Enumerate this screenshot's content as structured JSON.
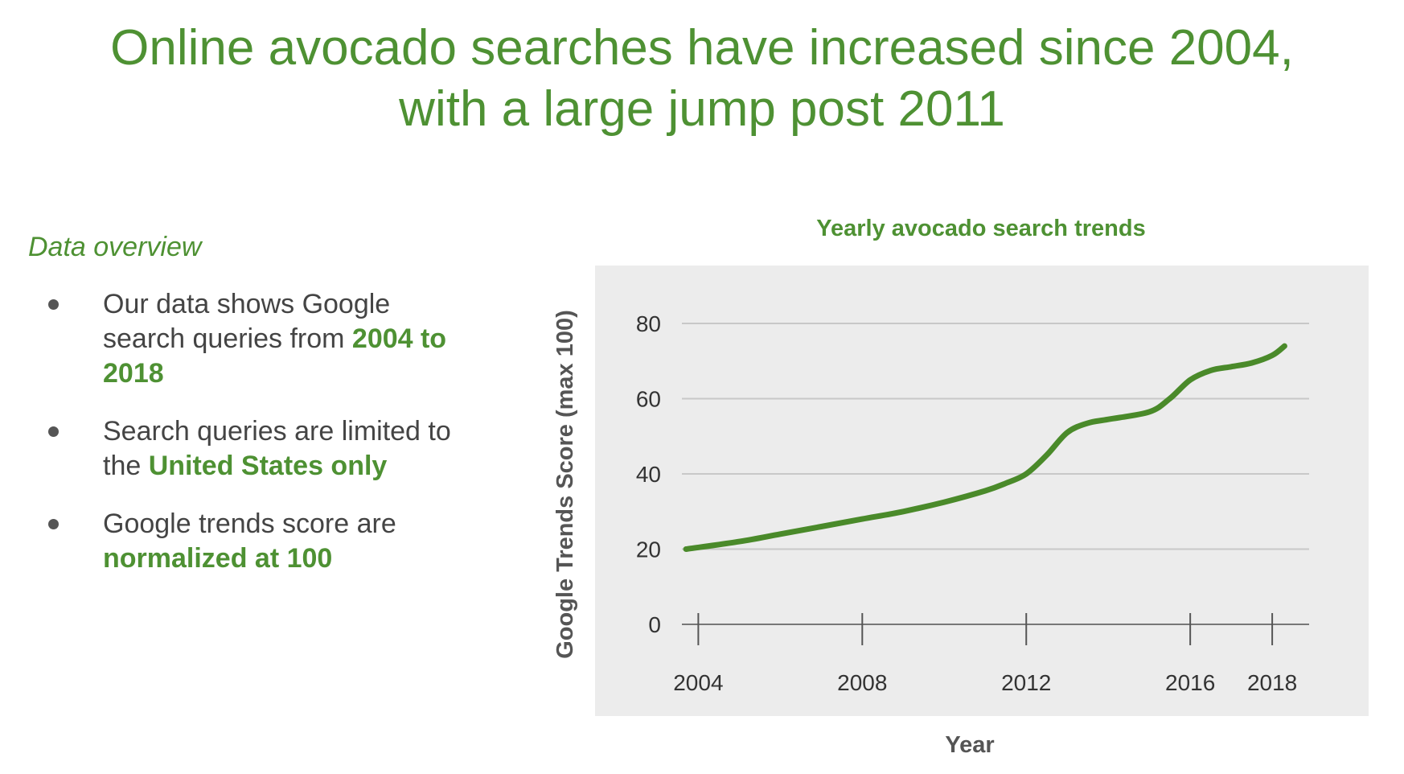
{
  "slide": {
    "title_line1": "Online avocado searches have increased since 2004,",
    "title_line2": "with a large jump post 2011"
  },
  "overview": {
    "heading": "Data overview",
    "bullets": [
      {
        "text": "Our data shows Google search queries from ",
        "highlight": "2004 to 2018",
        "after": ""
      },
      {
        "text": "Search queries are limited to the ",
        "highlight": "United States only",
        "after": ""
      },
      {
        "text": "Google trends score are ",
        "highlight": "normalized at 100",
        "after": ""
      }
    ]
  },
  "colors": {
    "accent": "#4e9133",
    "line": "#4a8a2a",
    "plot_background": "#ececec",
    "grid": "#c8c8c8",
    "text": "#444444"
  },
  "chart_data": {
    "type": "line",
    "title": "Yearly avocado search trends",
    "xlabel": "Year",
    "ylabel": "Google Trends Score (max 100)",
    "xlim": [
      2003.6,
      2018.9
    ],
    "ylim": [
      0,
      80
    ],
    "x_ticks": [
      2004,
      2008,
      2012,
      2016,
      2018
    ],
    "y_ticks": [
      0,
      20,
      40,
      60,
      80
    ],
    "grid": true,
    "series": [
      {
        "x": [
          2003.7,
          2005,
          2006,
          2007,
          2008,
          2009,
          2010,
          2011,
          2011.5,
          2012,
          2012.5,
          2013,
          2013.5,
          2014,
          2015,
          2015.5,
          2016,
          2016.5,
          2017,
          2017.5,
          2018,
          2018.3
        ],
        "y": [
          20,
          22,
          24,
          26,
          28,
          30,
          32.5,
          35.5,
          37.5,
          40,
          45,
          51,
          53.5,
          54.5,
          56.5,
          60,
          65,
          67.5,
          68.5,
          69.5,
          71.5,
          74
        ]
      }
    ]
  }
}
